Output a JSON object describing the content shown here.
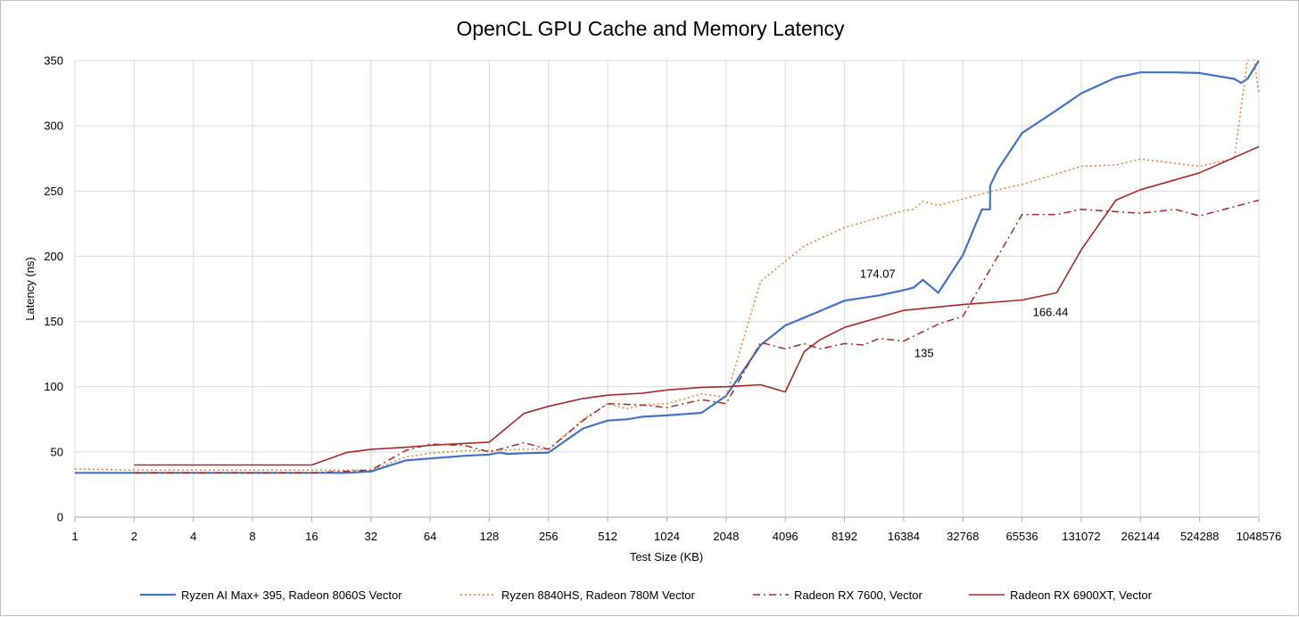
{
  "chart_data": {
    "type": "line",
    "title": "OpenCL GPU Cache and Memory Latency",
    "xlabel": "Test Size (KB)",
    "ylabel": "Latency (ns)",
    "x_scale": "log2",
    "x_ticks": [
      1,
      2,
      4,
      8,
      16,
      32,
      64,
      128,
      256,
      512,
      1024,
      2048,
      4096,
      8192,
      16384,
      32768,
      65536,
      131072,
      262144,
      524288,
      1048576
    ],
    "y_ticks": [
      0,
      50,
      100,
      150,
      200,
      250,
      300,
      350
    ],
    "ylim": [
      0,
      350
    ],
    "grid": true,
    "legend": "bottom",
    "series": [
      {
        "name": "Ryzen AI Max+ 395, Radeon 8060S Vector",
        "color": "#4472c4",
        "style": "solid",
        "x": [
          1,
          2,
          4,
          8,
          16,
          24,
          32,
          48,
          64,
          96,
          128,
          144,
          160,
          192,
          256,
          384,
          512,
          640,
          768,
          1024,
          1536,
          2048,
          3072,
          4096,
          5120,
          6144,
          8192,
          12288,
          16384,
          18432,
          20480,
          24576,
          32768,
          40960,
          45056,
          45100,
          49152,
          65536,
          98304,
          131072,
          196608,
          262144,
          393216,
          524288,
          786432,
          851968,
          917504,
          1048576
        ],
        "values": [
          34,
          34,
          34,
          34,
          34,
          34,
          35,
          43.5,
          45,
          47,
          48,
          49.5,
          48.5,
          49,
          49.5,
          68,
          74,
          75,
          77,
          78,
          80,
          93,
          132,
          147,
          153,
          158,
          166,
          170,
          174.07,
          176,
          182,
          172,
          201,
          236,
          236,
          254,
          266,
          294.5,
          312,
          325,
          337,
          341,
          341,
          340.5,
          336,
          333,
          336,
          350
        ]
      },
      {
        "name": "Ryzen 8840HS, Radeon 780M Vector",
        "color": "#ed7d31",
        "style": "dotted",
        "x": [
          1,
          2,
          4,
          8,
          16,
          32,
          48,
          64,
          96,
          128,
          192,
          256,
          384,
          512,
          640,
          768,
          1024,
          1536,
          2048,
          3072,
          4096,
          5120,
          8192,
          16384,
          18432,
          20480,
          24576,
          32768,
          49152,
          65536,
          131072,
          196608,
          262144,
          524288,
          786432,
          917504,
          983040,
          1048576
        ],
        "values": [
          37,
          36,
          36,
          36,
          36,
          36,
          46,
          49,
          51,
          51,
          52,
          52,
          75,
          87,
          83,
          86,
          87,
          94.5,
          92,
          181,
          196,
          208,
          222,
          235,
          236,
          242,
          239,
          244,
          251,
          255,
          269,
          270,
          274.5,
          269,
          275,
          350,
          355,
          325
        ]
      },
      {
        "name": "Radeon RX 7600, Vector",
        "color": "#a52a2a",
        "style": "dashdot",
        "x": [
          2,
          4,
          8,
          16,
          32,
          48,
          64,
          96,
          128,
          192,
          256,
          384,
          512,
          768,
          1024,
          1536,
          2048,
          3072,
          4096,
          5120,
          6144,
          8192,
          10240,
          12288,
          16384,
          24576,
          32768,
          65536,
          98304,
          131072,
          262144,
          393216,
          524288,
          1048576
        ],
        "values": [
          34,
          34,
          34,
          34,
          36,
          51,
          56,
          55,
          50,
          57,
          52,
          74,
          87,
          86,
          84,
          90,
          87,
          134,
          129,
          133,
          129,
          133,
          132,
          137,
          135,
          148,
          154,
          232,
          232,
          236,
          233,
          236,
          231,
          243
        ]
      },
      {
        "name": "Radeon RX 6900XT, Vector",
        "color": "#a52a2a",
        "style": "solid",
        "x": [
          2,
          4,
          8,
          16,
          24,
          32,
          48,
          64,
          96,
          128,
          192,
          256,
          384,
          512,
          768,
          1024,
          1536,
          2048,
          3072,
          4096,
          5120,
          6144,
          8192,
          16384,
          32768,
          65536,
          98304,
          131072,
          196608,
          262144,
          524288,
          1048576
        ],
        "values": [
          40,
          40,
          40,
          40,
          49.5,
          52,
          53.5,
          55,
          56.5,
          57.5,
          79.5,
          85,
          91,
          93.5,
          95,
          97.5,
          99.5,
          100,
          101.5,
          96,
          127,
          136,
          145.5,
          158.5,
          163,
          166.44,
          172,
          205,
          243,
          251,
          264,
          284
        ]
      }
    ],
    "annotations": [
      {
        "text": "174.07",
        "x": 16384,
        "y": 174.07,
        "anchor": "above-left"
      },
      {
        "text": "166.44",
        "x": 65536,
        "y": 166.44,
        "anchor": "below-right"
      },
      {
        "text": "135",
        "x": 16384,
        "y": 135,
        "anchor": "below-right"
      }
    ]
  }
}
